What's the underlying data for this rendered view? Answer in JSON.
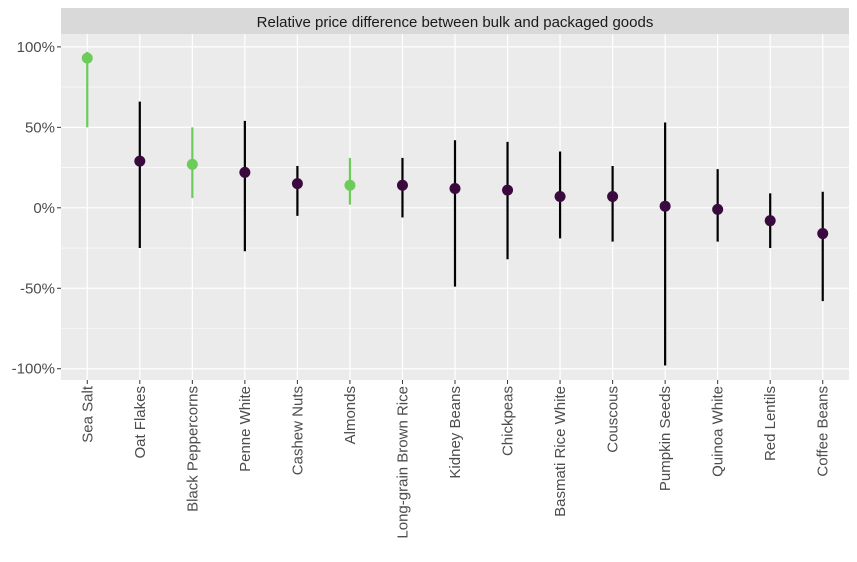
{
  "chart_data": {
    "type": "scatter",
    "title": "Relative price difference between bulk and packaged goods",
    "xlabel": "",
    "ylabel": "",
    "ylim": [
      -107,
      108
    ],
    "yticks": [
      -100,
      -50,
      0,
      50,
      100
    ],
    "ytick_labels": [
      "-100%",
      "-50%",
      "0%",
      "50%",
      "100%"
    ],
    "categories": [
      "Sea Salt",
      "Oat Flakes",
      "Black Peppercorns",
      "Penne White",
      "Cashew Nuts",
      "Almonds",
      "Long-grain Brown Rice",
      "Kidney Beans",
      "Chickpeas",
      "Basmati Rice White",
      "Couscous",
      "Pumpkin Seeds",
      "Quinoa White",
      "Red Lentils",
      "Coffee Beans"
    ],
    "values": [
      93,
      29,
      27,
      22,
      15,
      14,
      14,
      12,
      11,
      7,
      7,
      1,
      -1,
      -8,
      -16
    ],
    "lower": [
      50,
      -25,
      6,
      -27,
      -5,
      2,
      -6,
      -49,
      -32,
      -19,
      -21,
      -98,
      -21,
      -25,
      -58
    ],
    "upper": [
      97,
      66,
      50,
      54,
      26,
      31,
      31,
      42,
      41,
      35,
      26,
      53,
      24,
      9,
      10
    ],
    "highlighted": [
      true,
      false,
      true,
      false,
      false,
      true,
      false,
      false,
      false,
      false,
      false,
      false,
      false,
      false,
      false
    ],
    "colors": {
      "highlight": "#6ccc5a",
      "point_default": "#3a0a3f",
      "bar_default": "#000000",
      "panel": "#ebebeb",
      "grid": "#ffffff",
      "strip": "#d9d9d9"
    },
    "grid": true,
    "legend": "none"
  }
}
